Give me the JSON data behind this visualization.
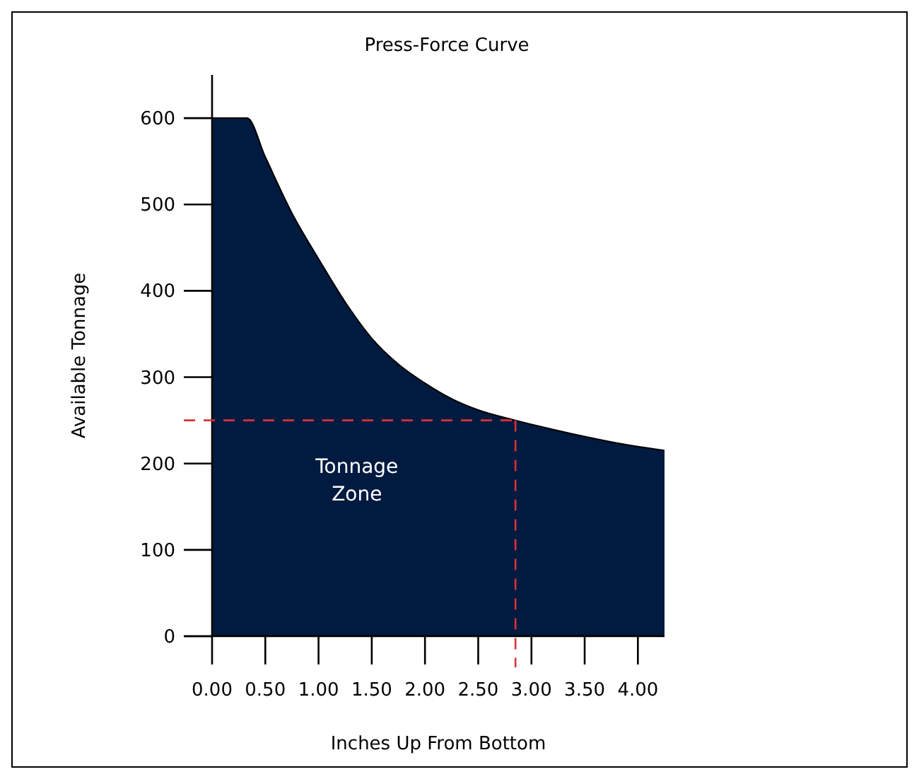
{
  "chart_data": {
    "type": "area",
    "title": "Press-Force Curve",
    "xlabel": "Inches Up From Bottom",
    "ylabel": "Available Tonnage",
    "x": [
      0,
      0.33,
      0.5,
      0.75,
      1.0,
      1.25,
      1.5,
      1.75,
      2.0,
      2.25,
      2.5,
      2.85,
      3.25,
      3.75,
      4.25
    ],
    "series": [
      {
        "color": "#001a40",
        "values": [
          600,
          600,
          555,
          490,
          437,
          387,
          345,
          315,
          293,
          275,
          262,
          250,
          238,
          225,
          215
        ]
      }
    ],
    "xlim": [
      0,
      4.25
    ],
    "xticks": [
      {
        "value": 0,
        "label": "0.00"
      },
      {
        "value": 0.5,
        "label": "0.50"
      },
      {
        "value": 1,
        "label": "1.00"
      },
      {
        "value": 1.5,
        "label": "1.50"
      },
      {
        "value": 2,
        "label": "2.00"
      },
      {
        "value": 2.5,
        "label": "2.50"
      },
      {
        "value": 3,
        "label": "3.00"
      },
      {
        "value": 3.5,
        "label": "3.50"
      },
      {
        "value": 4,
        "label": "4.00"
      }
    ],
    "ylim": [
      0,
      650
    ],
    "yticks": [
      0,
      100,
      200,
      300,
      400,
      500,
      600
    ],
    "ref_lines": [
      {
        "axis": "y",
        "value": 250,
        "color": "#d9333a",
        "line_style": "dashed"
      },
      {
        "axis": "x",
        "value": 2.85,
        "color": "#d9333a",
        "line_style": "dashed"
      }
    ],
    "annotations": [
      "Tonnage Zone"
    ],
    "grid": false
  }
}
